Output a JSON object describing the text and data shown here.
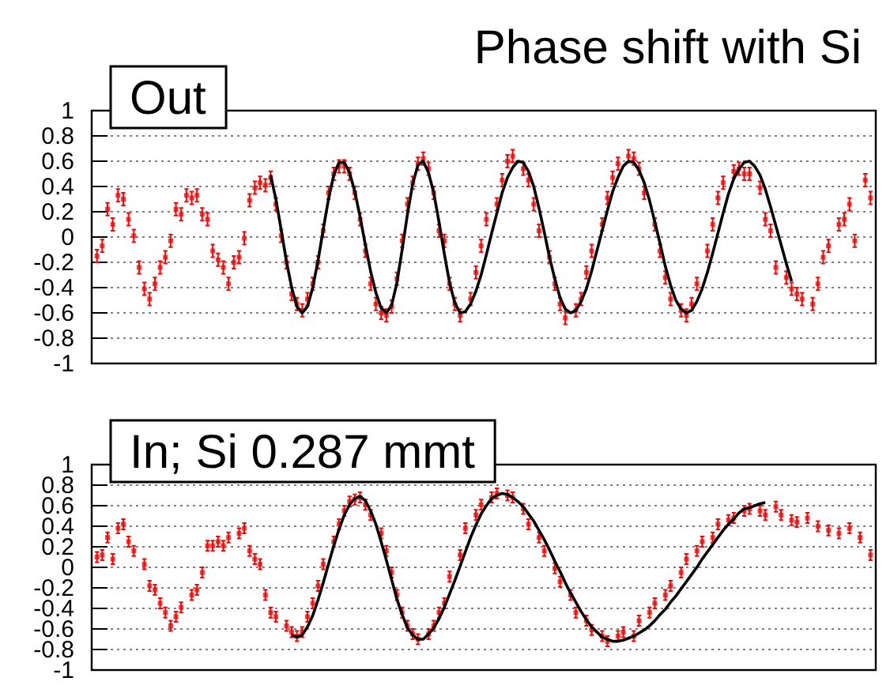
{
  "chart_data": [
    {
      "type": "scatter",
      "title": "Out",
      "annotations": [
        "Phase shift with Si"
      ],
      "categories": [
        null,
        null,
        null,
        null,
        null,
        null,
        null,
        null,
        null,
        null,
        null,
        null,
        null,
        null,
        null,
        null,
        null,
        null,
        null,
        null,
        null,
        null,
        null,
        null,
        null,
        null,
        null,
        null,
        null,
        null,
        null,
        null,
        null,
        null,
        null,
        null,
        null,
        null,
        null,
        null,
        null,
        null,
        null,
        null,
        null,
        null,
        null,
        null,
        null,
        null,
        null,
        null,
        null,
        null,
        null,
        null,
        null,
        null,
        null,
        null,
        null,
        null,
        null,
        null,
        null,
        null,
        null,
        null,
        null,
        null,
        null,
        null,
        null,
        null,
        null,
        null,
        null,
        null,
        null,
        null,
        null,
        null,
        null,
        null,
        null,
        null,
        null,
        null,
        null,
        null,
        null,
        null,
        null,
        null,
        null,
        null,
        null,
        null,
        null,
        null,
        null,
        null,
        null,
        null,
        null,
        null,
        null,
        null,
        null,
        null,
        null,
        null,
        null,
        null,
        null,
        null,
        null,
        null,
        null,
        null,
        null,
        null,
        null,
        null,
        null,
        null,
        null,
        null,
        null,
        null,
        null,
        null,
        null,
        null,
        null,
        null,
        null,
        null,
        null,
        null,
        null,
        null,
        null,
        null,
        null,
        null,
        null,
        null
      ],
      "ylim": [
        -1,
        1
      ],
      "yticks": [
        -1,
        -0.8,
        -0.6,
        -0.4,
        -0.2,
        0,
        0.2,
        0.4,
        0.6,
        0.8,
        1
      ],
      "grid": "y",
      "series": [
        {
          "color": "#ff0000",
          "marker": "square",
          "values": [
            -0.15,
            -0.07,
            0.22,
            0.1,
            0.33,
            0.3,
            0.14,
            0.01,
            -0.24,
            -0.41,
            -0.49,
            -0.37,
            -0.24,
            -0.16,
            -0.03,
            0.22,
            0.18,
            0.33,
            0.31,
            0.33,
            0.18,
            0.14,
            -0.11,
            -0.18,
            -0.24,
            -0.37,
            -0.2,
            -0.16,
            -0.01,
            0.29,
            0.39,
            0.43,
            0.41,
            0.47,
            0.26,
            0.01,
            -0.2,
            -0.45,
            -0.53,
            -0.58,
            -0.49,
            -0.37,
            -0.2,
            0.05,
            0.35,
            0.5,
            0.56,
            0.56,
            0.5,
            0.35,
            0.14,
            -0.11,
            -0.37,
            -0.53,
            -0.6,
            -0.62,
            -0.55,
            -0.33,
            -0.03,
            0.26,
            0.43,
            0.58,
            0.62,
            0.54,
            0.35,
            0.05,
            -0.03,
            -0.37,
            -0.53,
            -0.62,
            null,
            -0.49,
            -0.28,
            -0.07,
            0.14,
            null,
            0.26,
            0.45,
            0.6,
            0.64,
            null,
            0.54,
            0.45,
            0.26,
            0.05,
            null,
            -0.16,
            -0.37,
            -0.53,
            -0.64,
            null,
            -0.58,
            -0.49,
            -0.28,
            -0.11,
            null,
            0.1,
            0.31,
            0.47,
            0.58,
            null,
            0.64,
            0.62,
            0.54,
            0.35,
            null,
            0.1,
            -0.11,
            -0.32,
            -0.49,
            null,
            -0.58,
            -0.62,
            -0.53,
            -0.37,
            null,
            -0.11,
            0.1,
            0.31,
            0.43,
            null,
            0.52,
            0.54,
            0.5,
            0.5,
            null,
            0.39,
            0.14,
            0.05,
            -0.24,
            null,
            -0.32,
            -0.41,
            -0.45,
            -0.49,
            null,
            -0.53,
            -0.37,
            -0.16,
            -0.07,
            null,
            0.1,
            0.14,
            0.26,
            -0.03,
            null,
            0.45,
            0.31
          ],
          "errors": [
            0.05,
            0.05,
            0.05,
            0.05,
            0.05,
            0.05,
            0.05,
            0.05,
            0.05,
            0.05,
            0.05,
            0.05,
            0.05,
            0.05,
            0.05,
            0.05,
            0.05,
            0.05,
            0.05,
            0.05,
            0.05,
            0.05,
            0.05,
            0.05,
            0.05,
            0.05,
            0.05,
            0.05,
            0.05,
            0.05,
            0.05,
            0.05,
            0.05,
            0.05,
            0.05,
            0.05,
            0.05,
            0.05,
            0.05,
            0.05,
            0.05,
            0.05,
            0.05,
            0.05,
            0.05,
            0.05,
            0.05,
            0.05,
            0.05,
            0.05,
            0.05,
            0.05,
            0.05,
            0.05,
            0.05,
            0.05,
            0.05,
            0.05,
            0.05,
            0.05,
            0.05,
            0.05,
            0.05,
            0.05,
            0.05,
            0.05,
            0.05,
            0.05,
            0.05,
            0.05,
            null,
            0.05,
            0.05,
            0.05,
            0.05,
            null,
            0.05,
            0.05,
            0.05,
            0.05,
            null,
            0.05,
            0.05,
            0.05,
            0.05,
            null,
            0.05,
            0.05,
            0.05,
            0.05,
            null,
            0.05,
            0.05,
            0.05,
            0.05,
            null,
            0.05,
            0.05,
            0.05,
            0.05,
            null,
            0.05,
            0.05,
            0.05,
            0.05,
            null,
            0.05,
            0.05,
            0.05,
            0.05,
            null,
            0.05,
            0.05,
            0.05,
            0.05,
            null,
            0.05,
            0.05,
            0.05,
            0.05,
            null,
            0.05,
            0.05,
            0.05,
            0.05,
            null,
            0.05,
            0.05,
            0.05,
            0.05,
            null,
            0.05,
            0.05,
            0.05,
            0.05,
            null,
            0.05,
            0.05,
            0.05,
            0.05,
            null,
            0.05,
            0.05,
            0.05,
            0.05,
            null,
            0.05,
            0.05
          ]
        },
        {
          "type": "line",
          "color": "#000000",
          "values": [
            null,
            null,
            null,
            null,
            null,
            null,
            null,
            null,
            null,
            null,
            null,
            null,
            null,
            null,
            null,
            null,
            null,
            null,
            null,
            null,
            null,
            null,
            null,
            null,
            null,
            null,
            null,
            null,
            null,
            null,
            null,
            null,
            null,
            0.49,
            0.3,
            0.06,
            -0.19,
            -0.4,
            -0.55,
            -0.6,
            -0.55,
            -0.4,
            -0.19,
            0.06,
            0.3,
            0.49,
            0.59,
            0.59,
            0.51,
            0.36,
            0.16,
            -0.06,
            -0.27,
            -0.44,
            -0.56,
            -0.6,
            -0.54,
            -0.36,
            -0.1,
            0.18,
            0.42,
            0.57,
            0.6,
            0.51,
            0.35,
            0.12,
            -0.13,
            -0.36,
            -0.52,
            -0.6,
            -0.59,
            -0.53,
            -0.43,
            -0.3,
            -0.14,
            0.03,
            0.19,
            0.35,
            0.47,
            0.55,
            0.6,
            0.59,
            0.52,
            0.4,
            0.23,
            0.04,
            -0.16,
            -0.33,
            -0.48,
            -0.57,
            -0.6,
            -0.58,
            -0.51,
            -0.41,
            -0.27,
            -0.11,
            0.05,
            0.21,
            0.36,
            0.47,
            0.56,
            0.6,
            0.59,
            0.53,
            0.43,
            0.29,
            0.12,
            -0.05,
            -0.23,
            -0.38,
            -0.5,
            -0.57,
            -0.6,
            -0.58,
            -0.51,
            -0.41,
            -0.28,
            -0.13,
            0.03,
            0.19,
            0.34,
            0.46,
            0.54,
            0.59,
            0.6,
            0.56,
            0.49,
            0.38,
            0.24,
            0.09,
            -0.06,
            -0.21,
            -0.35,
            null,
            null,
            null,
            null,
            null,
            null,
            null,
            null,
            null,
            null,
            null,
            null,
            null,
            null,
            null
          ]
        }
      ]
    },
    {
      "type": "scatter",
      "title": "In; Si 0.287 mmt",
      "categories": [
        null,
        null,
        null,
        null,
        null,
        null,
        null,
        null,
        null,
        null,
        null,
        null,
        null,
        null,
        null,
        null,
        null,
        null,
        null,
        null,
        null,
        null,
        null,
        null,
        null,
        null,
        null,
        null,
        null,
        null,
        null,
        null,
        null,
        null,
        null,
        null,
        null,
        null,
        null,
        null,
        null,
        null,
        null,
        null,
        null,
        null,
        null,
        null,
        null,
        null,
        null,
        null,
        null,
        null,
        null,
        null,
        null,
        null,
        null,
        null,
        null,
        null,
        null,
        null,
        null,
        null,
        null,
        null,
        null,
        null,
        null,
        null,
        null,
        null,
        null,
        null,
        null,
        null,
        null,
        null,
        null,
        null,
        null,
        null,
        null,
        null,
        null,
        null,
        null,
        null,
        null,
        null,
        null,
        null,
        null,
        null,
        null,
        null,
        null,
        null,
        null,
        null,
        null,
        null,
        null,
        null,
        null,
        null,
        null,
        null,
        null,
        null,
        null,
        null,
        null,
        null,
        null,
        null,
        null,
        null,
        null,
        null,
        null,
        null,
        null,
        null,
        null,
        null,
        null,
        null,
        null,
        null,
        null,
        null,
        null,
        null,
        null,
        null,
        null,
        null,
        null,
        null,
        null,
        null,
        null,
        null,
        null,
        null
      ],
      "ylim": [
        -1,
        1
      ],
      "yticks": [
        -1,
        -0.8,
        -0.6,
        -0.4,
        -0.2,
        0,
        0.2,
        0.4,
        0.6,
        0.8,
        1
      ],
      "grid": "y",
      "series": [
        {
          "color": "#ff0000",
          "marker": "square",
          "values": [
            0.1,
            0.12,
            0.29,
            0.08,
            0.38,
            0.42,
            0.25,
            0.16,
            null,
            0.03,
            -0.18,
            -0.22,
            -0.35,
            -0.44,
            -0.57,
            -0.48,
            -0.39,
            null,
            -0.27,
            -0.22,
            -0.05,
            0.21,
            0.21,
            0.25,
            0.21,
            0.29,
            null,
            0.33,
            0.38,
            0.16,
            0.08,
            0.03,
            -0.27,
            -0.44,
            -0.48,
            null,
            -0.57,
            -0.63,
            -0.67,
            -0.63,
            -0.48,
            -0.35,
            -0.18,
            0.03,
            null,
            0.25,
            0.42,
            0.55,
            0.64,
            0.66,
            0.68,
            0.61,
            0.51,
            null,
            0.33,
            0.16,
            -0.05,
            -0.27,
            -0.44,
            -0.57,
            -0.65,
            -0.7,
            null,
            -0.65,
            -0.57,
            -0.44,
            -0.35,
            -0.09,
            null,
            0.12,
            0.38,
            null,
            0.51,
            0.61,
            null,
            0.68,
            0.72,
            null,
            0.7,
            0.68,
            null,
            0.57,
            0.42,
            null,
            0.29,
            0.16,
            null,
            -0.01,
            -0.14,
            null,
            -0.27,
            -0.44,
            null,
            -0.52,
            -0.61,
            null,
            -0.67,
            -0.72,
            null,
            -0.67,
            -0.63,
            null,
            -0.67,
            -0.52,
            null,
            -0.44,
            -0.35,
            null,
            -0.27,
            -0.18,
            null,
            -0.05,
            0.08,
            null,
            0.16,
            0.25,
            null,
            0.29,
            0.42,
            null,
            0.46,
            0.48,
            null,
            0.55,
            0.57,
            null,
            0.55,
            0.51,
            null,
            0.59,
            0.51,
            null,
            0.46,
            0.44,
            null,
            0.48,
            null,
            0.4,
            null,
            0.36,
            null,
            0.33,
            null,
            0.38,
            null,
            0.29,
            null,
            0.12
          ],
          "errors": [
            0.05,
            0.05,
            0.05,
            0.05,
            0.05,
            0.05,
            0.05,
            0.05,
            null,
            0.05,
            0.05,
            0.05,
            0.05,
            0.05,
            0.05,
            0.05,
            0.05,
            null,
            0.05,
            0.05,
            0.05,
            0.05,
            0.05,
            0.05,
            0.05,
            0.05,
            null,
            0.05,
            0.05,
            0.05,
            0.05,
            0.05,
            0.05,
            0.05,
            0.05,
            null,
            0.05,
            0.05,
            0.05,
            0.05,
            0.05,
            0.05,
            0.05,
            0.05,
            null,
            0.05,
            0.05,
            0.05,
            0.05,
            0.05,
            0.05,
            0.05,
            0.05,
            null,
            0.05,
            0.05,
            0.05,
            0.05,
            0.05,
            0.05,
            0.05,
            0.05,
            null,
            0.05,
            0.05,
            0.05,
            0.05,
            0.05,
            null,
            0.05,
            0.05,
            null,
            0.05,
            0.05,
            null,
            0.05,
            0.05,
            null,
            0.05,
            0.05,
            null,
            0.05,
            0.05,
            null,
            0.05,
            0.05,
            null,
            0.05,
            0.05,
            null,
            0.05,
            0.05,
            null,
            0.05,
            0.05,
            null,
            0.05,
            0.05,
            null,
            0.05,
            0.05,
            null,
            0.05,
            0.05,
            null,
            0.05,
            0.05,
            null,
            0.05,
            0.05,
            null,
            0.05,
            0.05,
            null,
            0.05,
            0.05,
            null,
            0.05,
            0.05,
            null,
            0.05,
            0.05,
            null,
            0.05,
            0.05,
            null,
            0.05,
            0.05,
            null,
            0.05,
            0.05,
            null,
            0.05,
            0.05,
            null,
            0.05,
            null,
            0.05,
            null,
            0.05,
            null,
            0.05,
            null,
            0.05,
            null,
            0.05,
            null,
            0.05
          ]
        },
        {
          "type": "line",
          "color": "#000000",
          "values": [
            null,
            null,
            null,
            null,
            null,
            null,
            null,
            null,
            null,
            null,
            null,
            null,
            null,
            null,
            null,
            null,
            null,
            null,
            null,
            null,
            null,
            null,
            null,
            null,
            null,
            null,
            null,
            null,
            null,
            null,
            null,
            null,
            null,
            null,
            null,
            null,
            null,
            -0.66,
            -0.68,
            -0.66,
            -0.58,
            -0.47,
            -0.32,
            -0.15,
            0.03,
            0.21,
            0.37,
            0.51,
            0.61,
            0.67,
            0.69,
            0.65,
            0.55,
            0.42,
            0.25,
            0.07,
            -0.12,
            -0.31,
            -0.46,
            -0.59,
            -0.66,
            -0.7,
            -0.7,
            -0.65,
            -0.59,
            -0.5,
            -0.39,
            -0.26,
            -0.13,
            0.01,
            0.15,
            0.29,
            0.41,
            0.52,
            0.6,
            0.67,
            0.7,
            0.72,
            0.71,
            0.68,
            0.64,
            0.59,
            0.52,
            0.45,
            0.36,
            0.27,
            0.17,
            0.06,
            -0.04,
            -0.15,
            -0.25,
            -0.34,
            -0.43,
            -0.51,
            -0.58,
            -0.63,
            -0.68,
            -0.7,
            -0.72,
            -0.72,
            -0.71,
            -0.69,
            -0.67,
            -0.64,
            -0.61,
            -0.57,
            -0.52,
            -0.46,
            -0.41,
            -0.34,
            -0.28,
            -0.21,
            -0.14,
            -0.07,
            0,
            0.08,
            0.15,
            0.22,
            0.29,
            0.36,
            0.42,
            0.47,
            0.53,
            0.57,
            0.58,
            0.6,
            0.62,
            0.63,
            null,
            null,
            null,
            null,
            null,
            null,
            null,
            null,
            null,
            null,
            null,
            null,
            null,
            null,
            null,
            null,
            null,
            null,
            null,
            null
          ]
        }
      ]
    }
  ]
}
